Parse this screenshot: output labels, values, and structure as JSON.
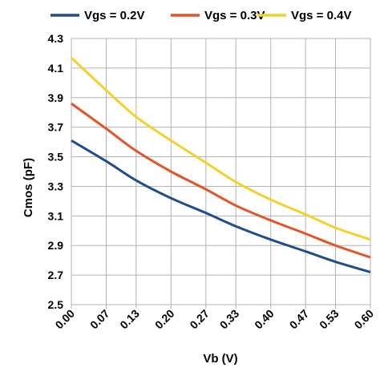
{
  "chart_data": {
    "type": "line",
    "title": "",
    "xlabel": "Vb (V)",
    "ylabel": "Cmos (pF)",
    "x": [
      0.0,
      0.07,
      0.13,
      0.2,
      0.27,
      0.33,
      0.4,
      0.47,
      0.53,
      0.6
    ],
    "x_tick_labels": [
      "0.00",
      "0.07",
      "0.13",
      "0.20",
      "0.27",
      "0.33",
      "0.40",
      "0.47",
      "0.53",
      "0.60"
    ],
    "xlim": [
      0.0,
      0.6
    ],
    "ylim": [
      2.5,
      4.3
    ],
    "y_ticks": [
      "2.5",
      "2.7",
      "2.9",
      "3.1",
      "3.3",
      "3.5",
      "3.7",
      "3.9",
      "4.1",
      "4.3"
    ],
    "grid": true,
    "legend_position": "top",
    "series": [
      {
        "name": "Vgs = 0.2V",
        "color": "#1f4e8c",
        "values": [
          3.61,
          3.47,
          3.34,
          3.22,
          3.12,
          3.03,
          2.94,
          2.86,
          2.79,
          2.72
        ]
      },
      {
        "name": "Vgs = 0.3V",
        "color": "#e0562a",
        "values": [
          3.86,
          3.69,
          3.54,
          3.4,
          3.28,
          3.17,
          3.07,
          2.98,
          2.9,
          2.82
        ]
      },
      {
        "name": "Vgs = 0.4V",
        "color": "#f5cf2a",
        "values": [
          4.17,
          3.95,
          3.77,
          3.61,
          3.46,
          3.33,
          3.21,
          3.11,
          3.02,
          2.94
        ]
      }
    ]
  }
}
